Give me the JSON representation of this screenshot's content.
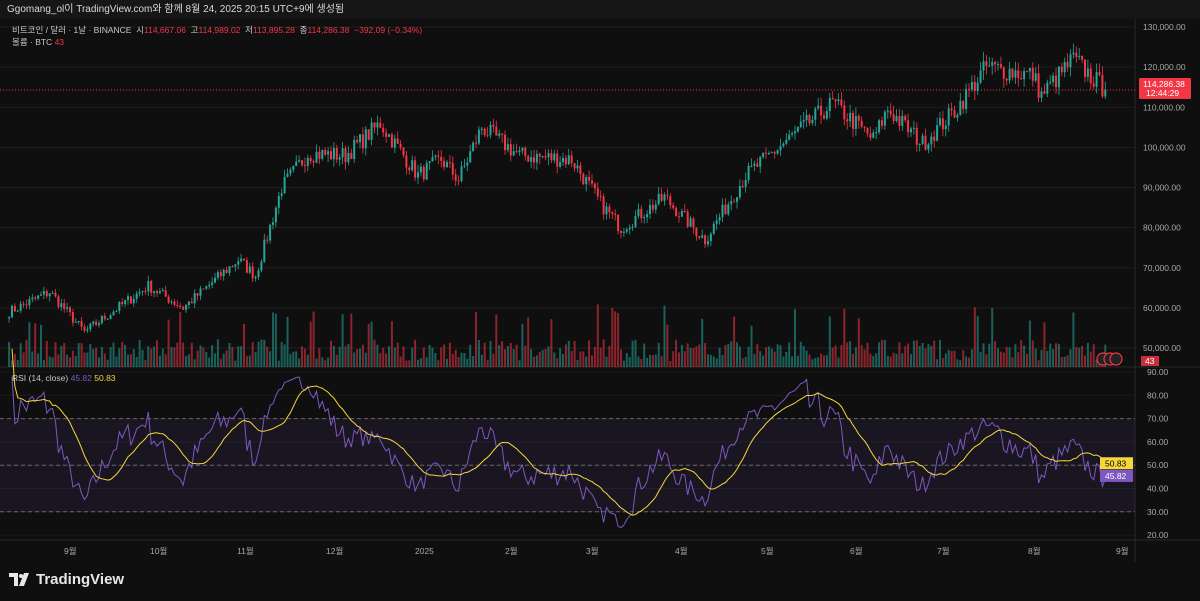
{
  "header": {
    "caption": "Ggomang_ol이 TradingView.com와 함께 8월 24, 2025 20:15 UTC+9에 생성됨"
  },
  "legend": {
    "symbol": "비트코인 / 달러 · 1날 · BINANCE",
    "open_label": "시",
    "open": "114,667.06",
    "high_label": "고",
    "high": "114,989.02",
    "low_label": "저",
    "low": "113,895.28",
    "close_label": "종",
    "close": "114,286.38",
    "change": "−392.09 (−0.34%)",
    "volume_label": "볼륨 · BTC",
    "volume": "43",
    "rsi_label": "RSI (14, close)",
    "rsi": "45.82",
    "rsi_ma": "50.83"
  },
  "price_axis": {
    "ticks": [
      "130,000.00",
      "120,000.00",
      "110,000.00",
      "100,000.00",
      "90,000.00",
      "80,000.00",
      "70,000.00",
      "60,000.00",
      "50,000.00"
    ],
    "last_price": "114,286.38",
    "countdown": "12:44:29",
    "volume_badge": "43"
  },
  "rsi_axis": {
    "ticks": [
      "90.00",
      "80.00",
      "70.00",
      "60.00",
      "50.00",
      "40.00",
      "30.00",
      "20.00"
    ],
    "ma_badge": "50.83",
    "rsi_badge": "45.82"
  },
  "time_axis": {
    "labels": [
      "9월",
      "10월",
      "11월",
      "12월",
      "2025",
      "2월",
      "3월",
      "4월",
      "5월",
      "6월",
      "7월",
      "8월",
      "9월"
    ]
  },
  "footer": {
    "brand": "TradingView"
  },
  "colors": {
    "up": "#26a69a",
    "down": "#f23645",
    "rsi": "#7e57c2",
    "rsi_ma": "#f5d63d",
    "bg": "#0f0f0f"
  },
  "chart_data": {
    "type": "candlestick",
    "title": "비트코인 / 달러 · 1날 · BINANCE",
    "ylim": [
      45000,
      132000
    ],
    "rsi_ylim": [
      17,
      92
    ],
    "rsi_bands": [
      70,
      50,
      30
    ],
    "keypoints": [
      [
        "2024-08-11",
        59000
      ],
      [
        "2024-08-25",
        64000
      ],
      [
        "2024-09-06",
        54000
      ],
      [
        "2024-09-28",
        65500
      ],
      [
        "2024-10-10",
        60000
      ],
      [
        "2024-10-29",
        72000
      ],
      [
        "2024-11-04",
        68000
      ],
      [
        "2024-11-13",
        90000
      ],
      [
        "2024-11-22",
        98500
      ],
      [
        "2024-12-05",
        98000
      ],
      [
        "2024-12-17",
        106000
      ],
      [
        "2024-12-30",
        93000
      ],
      [
        "2025-01-07",
        97000
      ],
      [
        "2025-01-13",
        92000
      ],
      [
        "2025-01-21",
        105000
      ],
      [
        "2025-02-03",
        98000
      ],
      [
        "2025-02-21",
        97000
      ],
      [
        "2025-03-03",
        86000
      ],
      [
        "2025-03-10",
        80000
      ],
      [
        "2025-03-25",
        87500
      ],
      [
        "2025-04-08",
        77000
      ],
      [
        "2025-04-22",
        93000
      ],
      [
        "2025-05-10",
        104000
      ],
      [
        "2025-05-22",
        111000
      ],
      [
        "2025-06-05",
        102000
      ],
      [
        "2025-06-10",
        109500
      ],
      [
        "2025-06-22",
        101000
      ],
      [
        "2025-07-03",
        109000
      ],
      [
        "2025-07-14",
        120000
      ],
      [
        "2025-07-30",
        118000
      ],
      [
        "2025-08-02",
        113000
      ],
      [
        "2025-08-13",
        122000
      ],
      [
        "2025-08-24",
        114286
      ]
    ]
  }
}
